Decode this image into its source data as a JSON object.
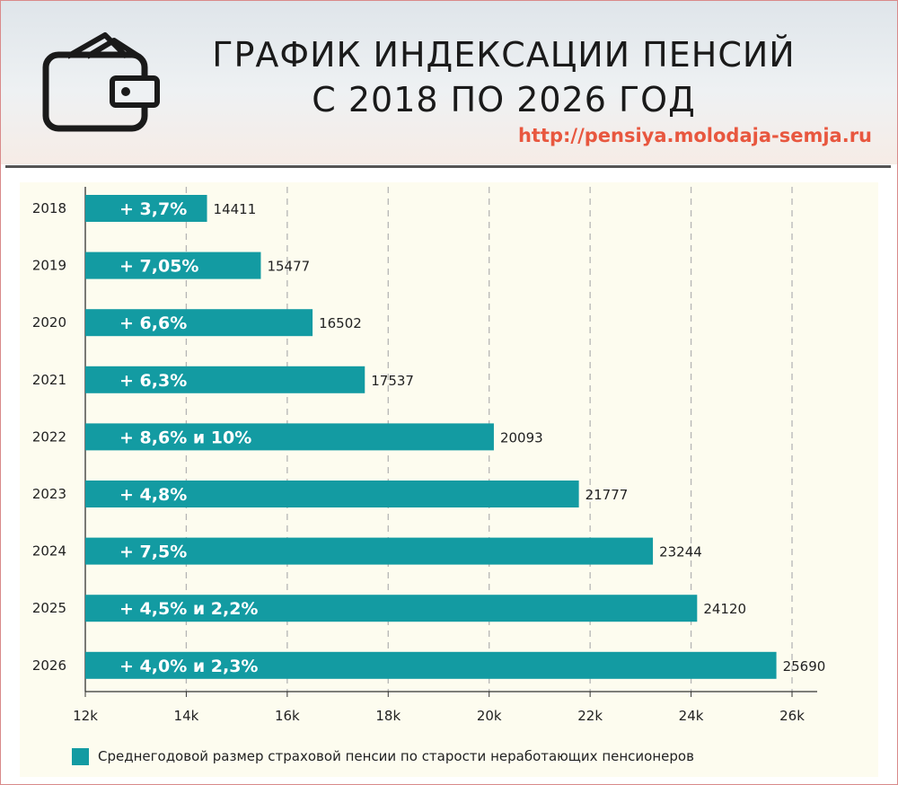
{
  "header": {
    "title_line1": "ГРАФИК ИНДЕКСАЦИИ ПЕНСИЙ",
    "title_line2": "С 2018 ПО 2026 ГОД",
    "url": "http://pensiya.molodaja-semja.ru",
    "icon": "wallet-icon"
  },
  "colors": {
    "bar": "#139ba2",
    "panel": "#fdfcef",
    "url": "#e8573f",
    "grid": "#b5b5b5"
  },
  "chart_data": {
    "type": "bar",
    "orientation": "horizontal",
    "categories": [
      "2018",
      "2019",
      "2020",
      "2021",
      "2022",
      "2023",
      "2024",
      "2025",
      "2026"
    ],
    "values": [
      14411,
      15477,
      16502,
      17537,
      20093,
      21777,
      23244,
      24120,
      25690
    ],
    "value_labels": [
      "14411",
      "15477",
      "16502",
      "17537",
      "20093",
      "21777",
      "23244",
      "24120",
      "25690"
    ],
    "bar_labels": [
      "+ 3,7%",
      "+ 7,05%",
      "+ 6,6%",
      "+ 6,3%",
      "+ 8,6% и 10%",
      "+ 4,8%",
      "+ 7,5%",
      "+ 4,5% и 2,2%",
      "+ 4,0% и 2,3%"
    ],
    "xlim": [
      12000,
      26000
    ],
    "x_ticks": [
      12000,
      14000,
      16000,
      18000,
      20000,
      22000,
      24000,
      26000
    ],
    "x_tick_labels": [
      "12k",
      "14k",
      "16k",
      "18k",
      "20k",
      "22k",
      "24k",
      "26k"
    ],
    "grid": true,
    "legend_position": "bottom",
    "series": [
      {
        "name": "Среднегодовой размер страховой пенсии по старости неработающих пенсионеров"
      }
    ]
  }
}
